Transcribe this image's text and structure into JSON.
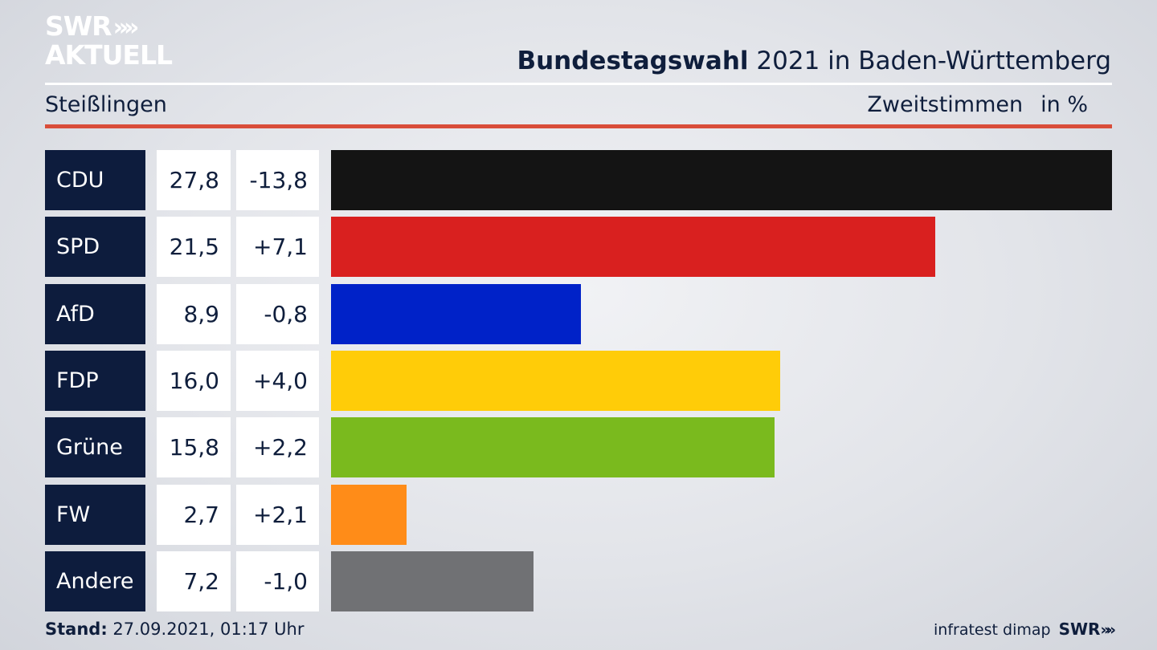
{
  "brand": {
    "line1": "SWR",
    "line1_chevrons": "»",
    "line2": "AKTUELL"
  },
  "header": {
    "title_bold": "Bundestagswahl",
    "title_rest": " 2021 in Baden-Württemberg"
  },
  "subheader": {
    "place": "Steißlingen",
    "metric": "Zweitstimmen",
    "unit": "in %"
  },
  "chart_data": {
    "type": "bar",
    "orientation": "horizontal",
    "title": "Bundestagswahl 2021 in Baden-Württemberg",
    "subtitle": "Steißlingen – Zweitstimmen in %",
    "categories": [
      "CDU",
      "SPD",
      "AfD",
      "FDP",
      "Grüne",
      "FW",
      "Andere"
    ],
    "values": [
      27.8,
      21.5,
      8.9,
      16.0,
      15.8,
      2.7,
      7.2
    ],
    "value_labels": [
      "27,8",
      "21,5",
      "8,9",
      "16,0",
      "15,8",
      "2,7",
      "7,2"
    ],
    "changes": [
      -13.8,
      7.1,
      -0.8,
      4.0,
      2.2,
      2.1,
      -1.0
    ],
    "change_labels": [
      "-13,8",
      "+7,1",
      "-0,8",
      "+4,0",
      "+2,2",
      "+2,1",
      "-1,0"
    ],
    "colors": [
      "#141414",
      "#d9201f",
      "#0022c8",
      "#ffcc08",
      "#7aba1e",
      "#ff8c18",
      "#707174"
    ],
    "xlim": [
      0,
      27.8
    ]
  },
  "footer": {
    "stand_label": "Stand:",
    "stand_value": " 27.09.2021, 01:17 Uhr",
    "source": "infratest dimap",
    "source_brand": "SWR",
    "source_chevrons": "»"
  }
}
